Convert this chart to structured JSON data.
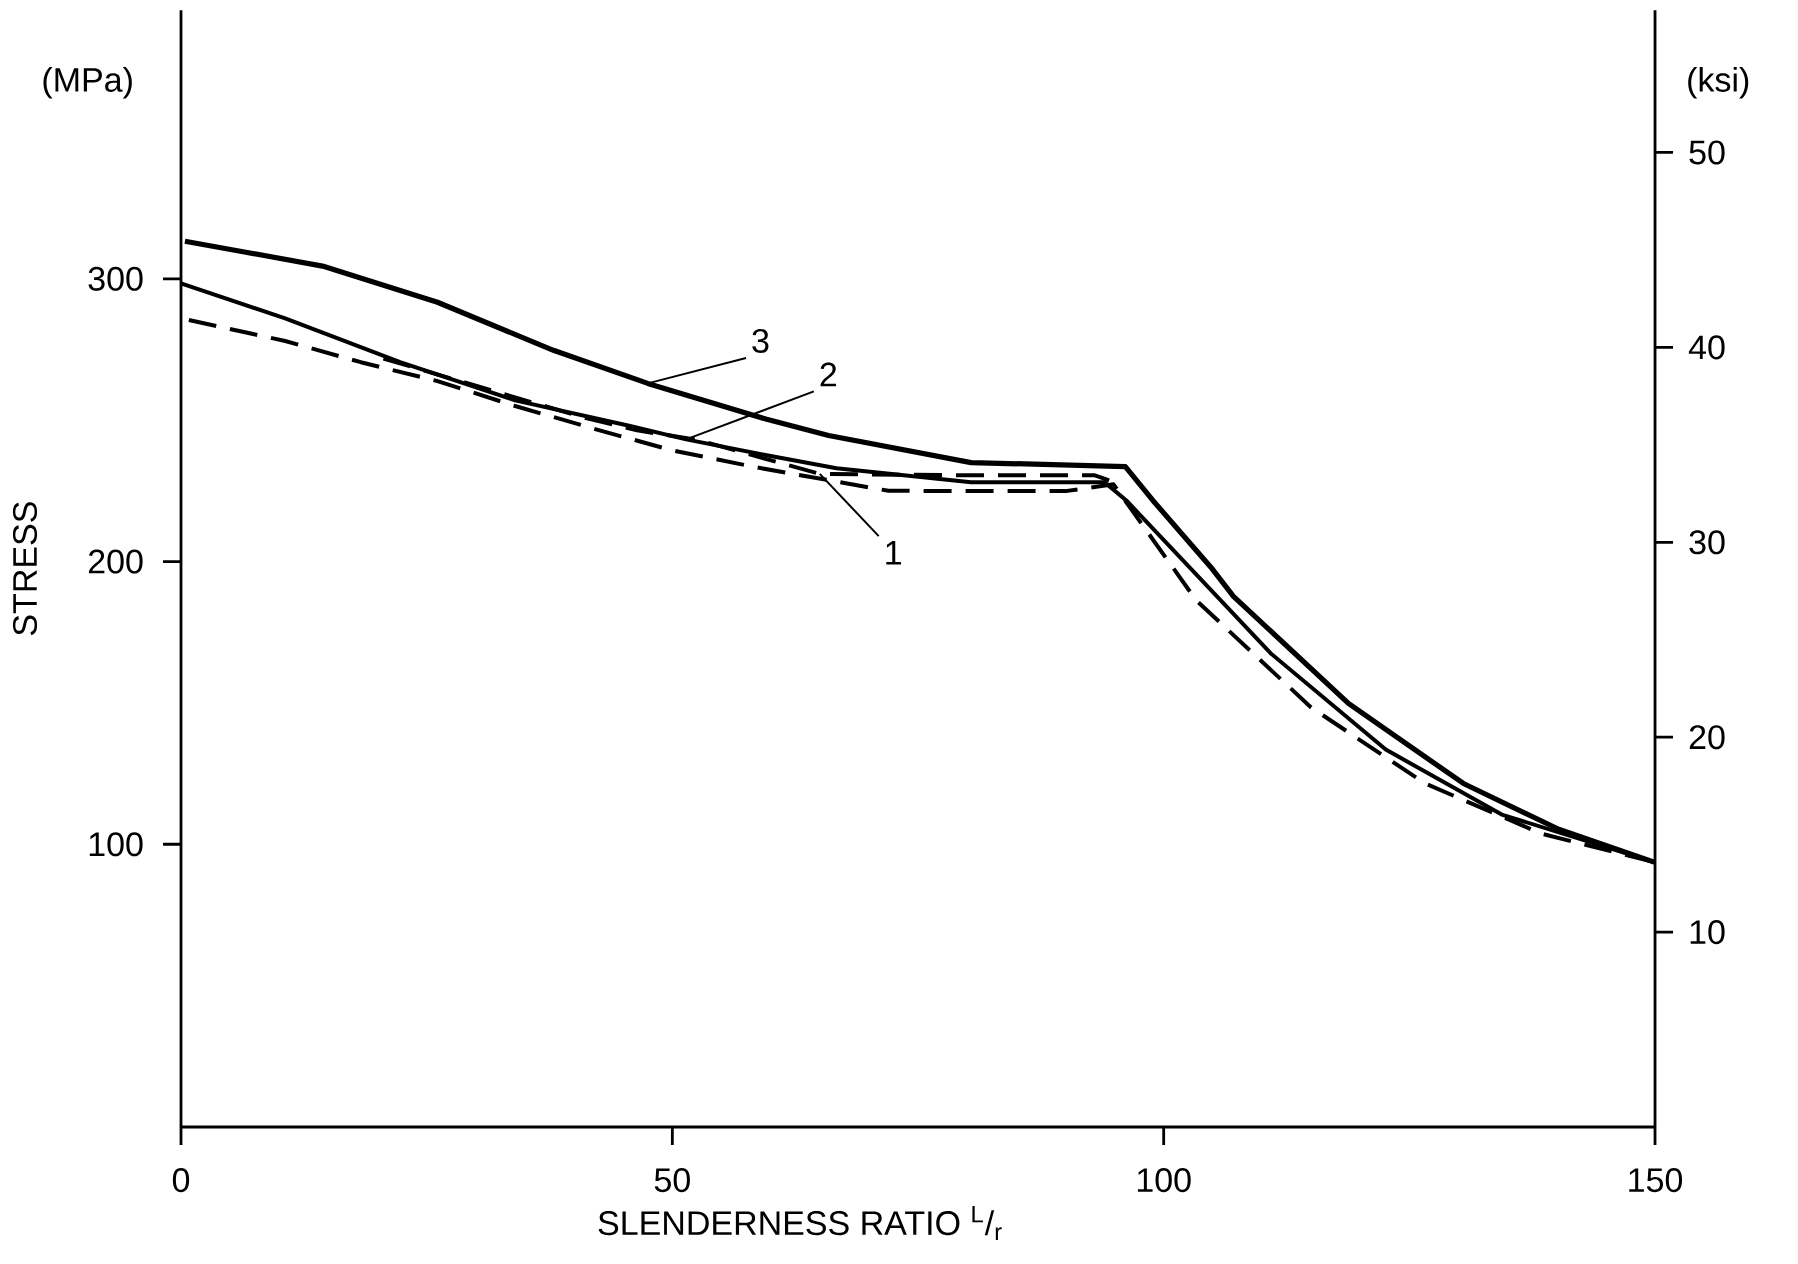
{
  "chart_data": {
    "type": "line",
    "xlabel": "SLENDERNESS RATIO    $^{L}$/$_{r}$",
    "ylabel": "STRESS",
    "y2label": "(ksi)",
    "annotations": [
      "(MPa)"
    ],
    "xlim": [
      0,
      150
    ],
    "ylim": [
      0,
      395
    ],
    "y2lim": [
      0,
      57.3
    ],
    "xticks": [
      0,
      50,
      100,
      150
    ],
    "yticks": [
      100,
      200,
      300
    ],
    "y2ticks": [
      10,
      20,
      30,
      40,
      50
    ],
    "series": [
      {
        "name": "1",
        "color": "#000000",
        "line_style": "dashed",
        "x": [
          20.6,
          40.9,
          46.4,
          52.6,
          65,
          80,
          93,
          95
        ],
        "values": [
          271.8,
          251,
          246.4,
          243,
          231,
          230.5,
          230.5,
          228
        ]
      },
      {
        "name": "2",
        "color": "#000000",
        "line_style": "solid",
        "x": [
          0,
          10.6,
          22.3,
          34,
          45.6,
          51.4,
          59.6,
          66.7,
          80.4,
          94,
          96.2,
          110.9,
          122.6,
          134.4,
          150
        ],
        "values": [
          298.4,
          286,
          270.5,
          257,
          248,
          243.2,
          237.6,
          233,
          228,
          228,
          221.6,
          167.5,
          133.5,
          110.5,
          93.6
        ]
      },
      {
        "name": "3",
        "color": "#000000",
        "line_style": "solid",
        "x": [
          0.4,
          14.4,
          26.1,
          37.9,
          47.5,
          59.6,
          65.9,
          80.4,
          96.1,
          98.9,
          104.8,
          107.1,
          118.8,
          130.5,
          140.2,
          150
        ],
        "values": [
          313.3,
          304.5,
          291.7,
          274.7,
          263,
          250.3,
          244.6,
          235,
          233.6,
          221.6,
          198,
          187.7,
          149.8,
          121.5,
          105.3,
          93.6
        ]
      },
      {
        "color": "#000000",
        "line_style": "dashed",
        "x": [
          0.8,
          10.6,
          18.3,
          26.1,
          34,
          42.6,
          49.9,
          58.4,
          72,
          90,
          94.9,
          103.3,
          115,
          126.6,
          138.4,
          150
        ],
        "values": [
          285.4,
          278,
          270.5,
          263.8,
          255,
          246.4,
          239.4,
          233.4,
          225,
          224.9,
          227.3,
          186.3,
          148.4,
          121.5,
          103.8,
          93.6
        ]
      }
    ]
  }
}
